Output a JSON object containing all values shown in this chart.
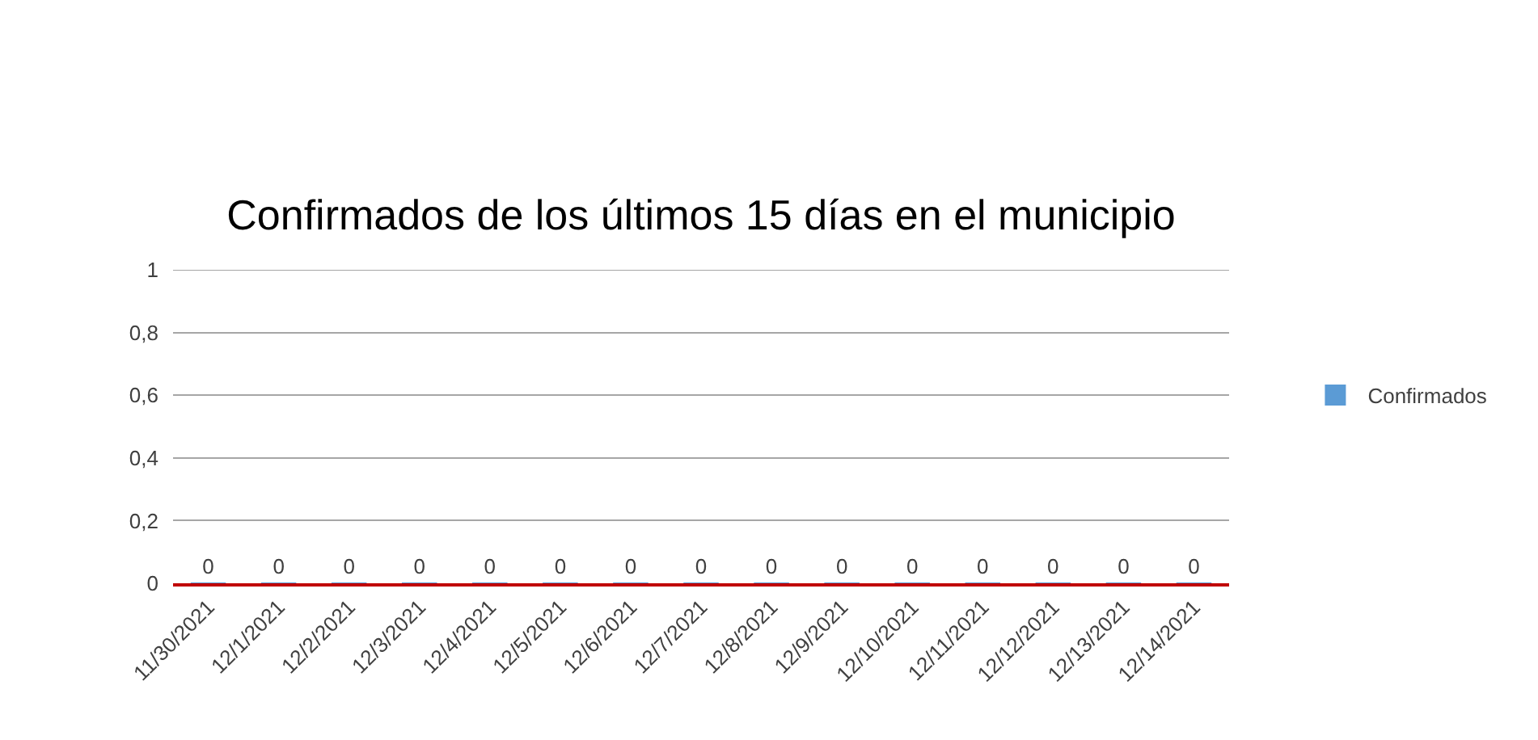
{
  "chart_data": {
    "type": "bar",
    "title": "Confirmados de los últimos 15 días en el municipio",
    "categories": [
      "11/30/2021",
      "12/1/2021",
      "12/2/2021",
      "12/3/2021",
      "12/4/2021",
      "12/5/2021",
      "12/6/2021",
      "12/7/2021",
      "12/8/2021",
      "12/9/2021",
      "12/10/2021",
      "12/11/2021",
      "12/12/2021",
      "12/13/2021",
      "12/14/2021"
    ],
    "series": [
      {
        "name": "Confirmados",
        "color": "#5b9bd5",
        "values": [
          0,
          0,
          0,
          0,
          0,
          0,
          0,
          0,
          0,
          0,
          0,
          0,
          0,
          0,
          0
        ]
      }
    ],
    "ylim": [
      0,
      1
    ],
    "yticks": [
      0,
      {
        "value": 0.2,
        "label": "0,2"
      },
      {
        "value": 0.4,
        "label": "0,4"
      },
      {
        "value": 0.6,
        "label": "0,6"
      },
      {
        "value": 0.8,
        "label": "0,8"
      },
      1
    ],
    "grid": "y",
    "legend": "right",
    "data_labels": true
  }
}
